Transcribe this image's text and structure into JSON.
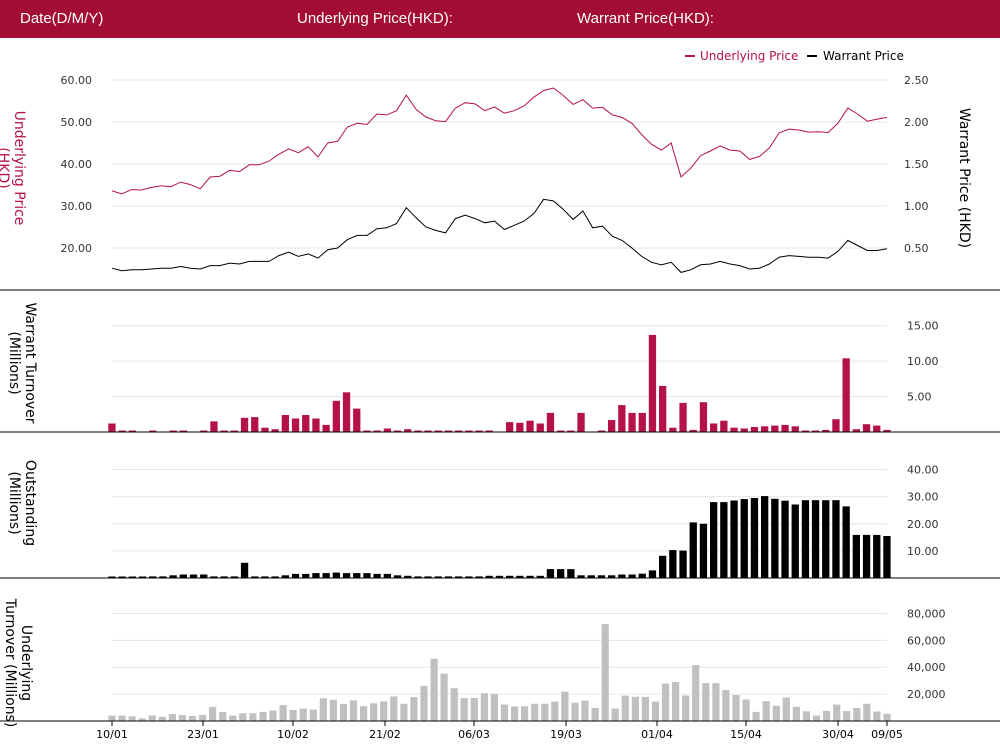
{
  "header": {
    "date_label": "Date(D/M/Y)",
    "underlying_label": "Underlying Price(HKD):",
    "warrant_label": "Warrant Price(HKD):"
  },
  "colors": {
    "brand": "#a30d33",
    "underlying": "#b5114a",
    "warrant": "#000000",
    "underlying_turnover": "#c0c0c0",
    "grid": "#e6e6e6"
  },
  "chart_data": [
    {
      "type": "line",
      "legend": [
        {
          "name": "Underlying Price",
          "color": "#b5114a"
        },
        {
          "name": "Warrant Price",
          "color": "#000000"
        }
      ],
      "legend_position": "top-right",
      "ylabel_left": "Underlying Price (HKD)",
      "ylabel_right": "Warrant  Price (HKD)",
      "yticks_left": [
        "20.00",
        "30.00",
        "40.00",
        "50.00",
        "60.00"
      ],
      "yticks_right": [
        "0.50",
        "1.00",
        "1.50",
        "2.00",
        "2.50"
      ],
      "ylim_left": [
        10,
        60
      ],
      "ylim_right": [
        0,
        2.5
      ],
      "grid": true,
      "series": [
        {
          "name": "Underlying Price",
          "axis": "left",
          "values": [
            33.6,
            32.9,
            33.9,
            33.8,
            34.4,
            34.8,
            34.6,
            35.7,
            35.1,
            34.1,
            36.9,
            37.1,
            38.5,
            38.2,
            39.8,
            39.8,
            40.7,
            42.3,
            43.6,
            42.7,
            44.1,
            41.7,
            45.0,
            45.4,
            48.8,
            49.7,
            49.4,
            51.9,
            51.7,
            52.7,
            56.4,
            53.0,
            51.2,
            50.3,
            50.1,
            53.3,
            54.6,
            54.3,
            52.7,
            53.6,
            52.1,
            52.7,
            53.8,
            55.9,
            57.5,
            58.1,
            56.3,
            54.2,
            55.3,
            53.3,
            53.5,
            51.7,
            51.1,
            49.7,
            47.0,
            44.7,
            43.3,
            45.0,
            36.9,
            39.0,
            42.0,
            43.1,
            44.3,
            43.3,
            43.1,
            41.1,
            41.8,
            43.8,
            47.4,
            48.3,
            48.1,
            47.6,
            47.7,
            47.5,
            49.7,
            53.3,
            51.9,
            50.2,
            50.7,
            51.1
          ]
        },
        {
          "name": "Warrant Price",
          "axis": "right",
          "values": [
            0.26,
            0.23,
            0.24,
            0.24,
            0.25,
            0.26,
            0.26,
            0.28,
            0.26,
            0.25,
            0.29,
            0.29,
            0.32,
            0.31,
            0.34,
            0.34,
            0.34,
            0.41,
            0.45,
            0.4,
            0.43,
            0.38,
            0.48,
            0.5,
            0.6,
            0.65,
            0.65,
            0.73,
            0.74,
            0.79,
            0.98,
            0.86,
            0.75,
            0.71,
            0.68,
            0.85,
            0.89,
            0.85,
            0.8,
            0.82,
            0.72,
            0.77,
            0.82,
            0.91,
            1.08,
            1.06,
            0.96,
            0.84,
            0.94,
            0.74,
            0.76,
            0.64,
            0.59,
            0.5,
            0.4,
            0.33,
            0.3,
            0.33,
            0.21,
            0.24,
            0.3,
            0.31,
            0.34,
            0.31,
            0.29,
            0.25,
            0.26,
            0.31,
            0.39,
            0.41,
            0.4,
            0.39,
            0.39,
            0.38,
            0.46,
            0.59,
            0.53,
            0.47,
            0.47,
            0.49
          ]
        }
      ]
    },
    {
      "type": "bar",
      "ylabel": "Warrant  Turnover (Millions)",
      "yticks": [
        "5.00",
        "10.00",
        "15.00"
      ],
      "ylim": [
        0,
        17.5
      ],
      "grid": true,
      "series": [
        {
          "values": [
            1.2,
            0.1,
            0.1,
            0,
            0.1,
            0,
            0.1,
            0.1,
            0,
            0.1,
            1.5,
            0.1,
            0.1,
            2.0,
            2.1,
            0.6,
            0.4,
            2.4,
            1.9,
            2.4,
            1.9,
            1.0,
            4.4,
            5.6,
            3.3,
            0.2,
            0.1,
            0.5,
            0.1,
            0.4,
            0.1,
            0.1,
            0.1,
            0.1,
            0.1,
            0.1,
            0.1,
            0.1,
            0,
            1.4,
            1.3,
            1.6,
            1.2,
            2.7,
            0.1,
            0.1,
            2.7,
            0,
            0.1,
            1.7,
            3.8,
            2.7,
            2.7,
            13.7,
            6.5,
            0.6,
            4.1,
            0.3,
            4.2,
            1.2,
            1.6,
            0.6,
            0.5,
            0.7,
            0.8,
            0.9,
            1.0,
            0.8,
            0.2,
            0.2,
            0.3,
            1.8,
            10.4,
            0.4,
            1.1,
            0.9,
            0.3
          ]
        }
      ]
    },
    {
      "type": "bar",
      "ylabel": "Outstanding (Millions)",
      "yticks": [
        "10.00",
        "20.00",
        "30.00",
        "40.00"
      ],
      "ylim": [
        0,
        45
      ],
      "grid": true,
      "series": [
        {
          "values": [
            0.3,
            0.3,
            0.3,
            0.3,
            0.6,
            0.6,
            1.0,
            1.3,
            1.3,
            1.3,
            0.6,
            0.6,
            0.6,
            5.6,
            0.6,
            0.6,
            0.6,
            1.0,
            1.5,
            1.5,
            1.8,
            1.8,
            2.0,
            1.8,
            1.8,
            1.8,
            1.5,
            1.5,
            1.0,
            0.8,
            0.6,
            0.6,
            0.6,
            0.6,
            0.6,
            0.6,
            0.6,
            0.8,
            0.8,
            0.8,
            0.8,
            0.8,
            0.8,
            3.3,
            3.3,
            3.3,
            1.0,
            1.0,
            1.0,
            1.0,
            1.3,
            1.3,
            1.6,
            2.8,
            8.2,
            10.3,
            10.1,
            20.5,
            20.0,
            28.0,
            28.0,
            28.6,
            29.1,
            29.5,
            30.2,
            29.2,
            28.5,
            27.1,
            28.7,
            28.7,
            28.7,
            28.7,
            26.4,
            15.9,
            15.9,
            15.9,
            15.5
          ]
        }
      ]
    },
    {
      "type": "bar",
      "ylabel": "Underlying Turnover (Millions)",
      "yticks": [
        "20,000",
        "40,000",
        "60,000",
        "80,000"
      ],
      "ylim": [
        0,
        90000
      ],
      "grid": true,
      "x_tick_labels": [
        "10/01",
        "23/01",
        "10/02",
        "21/02",
        "06/03",
        "19/03",
        "01/04",
        "15/04",
        "30/04",
        "09/05"
      ],
      "series": [
        {
          "values": [
            4000,
            4000,
            3500,
            2000,
            4200,
            3100,
            5200,
            4400,
            3800,
            4500,
            10500,
            6700,
            4000,
            5700,
            5800,
            6800,
            7800,
            11800,
            8200,
            9300,
            8500,
            16900,
            15800,
            12700,
            15300,
            11000,
            13200,
            14600,
            18300,
            12800,
            17800,
            26000,
            46300,
            35200,
            24400,
            17000,
            17200,
            20700,
            20100,
            12200,
            10800,
            10900,
            12800,
            12900,
            14500,
            21800,
            13600,
            15200,
            9700,
            72100,
            9300,
            18900,
            18000,
            17900,
            14400,
            27800,
            29000,
            19000,
            41500,
            28200,
            28200,
            23000,
            19400,
            16000,
            6800,
            14700,
            11400,
            17400,
            10500,
            7200,
            4000,
            7500,
            12200,
            7400,
            9700,
            12900,
            7100,
            5400
          ]
        }
      ]
    }
  ]
}
